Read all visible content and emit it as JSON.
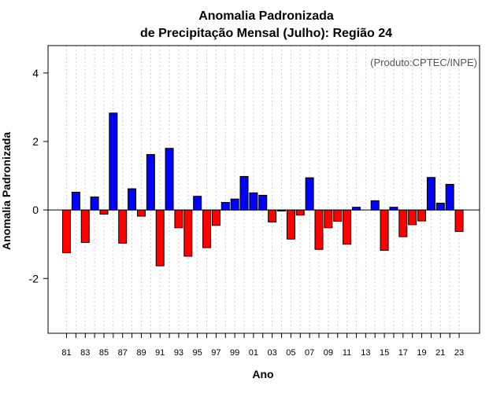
{
  "chart_data": {
    "type": "bar",
    "title": "Anomalia Padronizada",
    "subtitle": "de Precipitação Mensal (Julho): Região 24",
    "xlabel": "Ano",
    "ylabel": "Anomalia Padronizada",
    "annotation": "(Produto:CPTEC/INPE)",
    "ylim": [
      -3.6,
      4.8
    ],
    "yticks": [
      -2,
      0,
      2,
      4
    ],
    "ytick_labels": [
      "-2",
      "0",
      "2",
      "4"
    ],
    "grid": "vertical dotted",
    "colors": {
      "positive": "#0000ff",
      "negative": "#ff0000"
    },
    "categories": [
      "1981",
      "1982",
      "1983",
      "1984",
      "1985",
      "1986",
      "1987",
      "1988",
      "1989",
      "1990",
      "1991",
      "1992",
      "1993",
      "1994",
      "1995",
      "1996",
      "1997",
      "1998",
      "1999",
      "2000",
      "2001",
      "2002",
      "2003",
      "2004",
      "2005",
      "2006",
      "2007",
      "2008",
      "2009",
      "2010",
      "2011",
      "2012",
      "2013",
      "2014",
      "2015",
      "2016",
      "2017",
      "2018",
      "2019",
      "2020",
      "2021",
      "2022",
      "2023"
    ],
    "xtick_labels": [
      "81",
      "83",
      "85",
      "87",
      "89",
      "91",
      "93",
      "95",
      "97",
      "99",
      "01",
      "03",
      "05",
      "07",
      "09",
      "11",
      "13",
      "15",
      "17",
      "19",
      "21",
      "23"
    ],
    "values": [
      -1.25,
      0.52,
      -0.95,
      0.38,
      -0.12,
      2.83,
      -0.97,
      0.62,
      -0.18,
      1.62,
      -1.63,
      1.8,
      -0.52,
      -1.35,
      0.4,
      -1.1,
      -0.45,
      0.22,
      0.32,
      0.98,
      0.5,
      0.43,
      -0.35,
      -0.03,
      -0.85,
      -0.15,
      0.94,
      -1.15,
      -0.52,
      -0.33,
      -1.0,
      0.08,
      0.0,
      0.27,
      -1.18,
      0.08,
      -0.78,
      -0.43,
      -0.32,
      0.95,
      0.2,
      0.75,
      -0.63
    ]
  }
}
